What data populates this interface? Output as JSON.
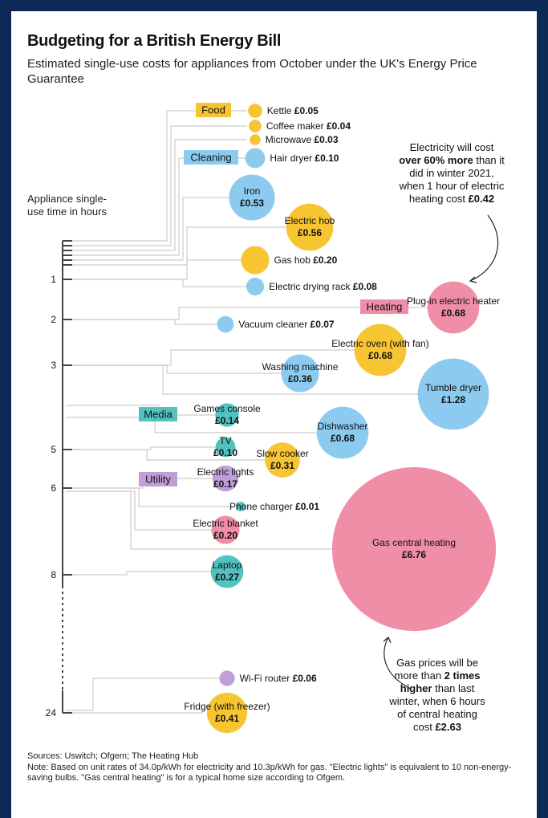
{
  "title": "Budgeting for a British Energy Bill",
  "subtitle": "Estimated single-use costs for appliances from October under the UK's Energy Price Guarantee",
  "colors": {
    "Food": "#f7c531",
    "Cleaning": "#8ccbef",
    "Heating": "#f08da7",
    "Media": "#52c2c0",
    "Utility": "#c09fd9",
    "axis": "#444444",
    "connector": "#cccccc"
  },
  "chart_data": {
    "type": "bubble",
    "ylabel": "Appliance single-use time in hours",
    "y_ticks": [
      "1",
      "2",
      "3",
      "5",
      "6",
      "8",
      "24"
    ],
    "categories": [
      "Food",
      "Cleaning",
      "Heating",
      "Media",
      "Utility"
    ],
    "series": [
      {
        "appliance": "Kettle",
        "cost": "£0.05",
        "value": 0.05,
        "category": "Food"
      },
      {
        "appliance": "Coffee maker",
        "cost": "£0.04",
        "value": 0.04,
        "category": "Food"
      },
      {
        "appliance": "Microwave",
        "cost": "£0.03",
        "value": 0.03,
        "category": "Food"
      },
      {
        "appliance": "Hair dryer",
        "cost": "£0.10",
        "value": 0.1,
        "category": "Cleaning"
      },
      {
        "appliance": "Iron",
        "cost": "£0.53",
        "value": 0.53,
        "category": "Cleaning"
      },
      {
        "appliance": "Electric hob",
        "cost": "£0.56",
        "value": 0.56,
        "category": "Food"
      },
      {
        "appliance": "Gas hob",
        "cost": "£0.20",
        "value": 0.2,
        "category": "Food"
      },
      {
        "appliance": "Electric drying rack",
        "cost": "£0.08",
        "value": 0.08,
        "category": "Cleaning"
      },
      {
        "appliance": "Plug-in electric heater",
        "cost": "£0.68",
        "value": 0.68,
        "category": "Heating"
      },
      {
        "appliance": "Vacuum cleaner",
        "cost": "£0.07",
        "value": 0.07,
        "category": "Cleaning"
      },
      {
        "appliance": "Electric oven (with fan)",
        "cost": "£0.68",
        "value": 0.68,
        "category": "Food"
      },
      {
        "appliance": "Washing machine",
        "cost": "£0.36",
        "value": 0.36,
        "category": "Cleaning"
      },
      {
        "appliance": "Tumble dryer",
        "cost": "£1.28",
        "value": 1.28,
        "category": "Cleaning"
      },
      {
        "appliance": "Games console",
        "cost": "£0.14",
        "value": 0.14,
        "category": "Media"
      },
      {
        "appliance": "Dishwasher",
        "cost": "£0.68",
        "value": 0.68,
        "category": "Cleaning"
      },
      {
        "appliance": "TV",
        "cost": "£0.10",
        "value": 0.1,
        "category": "Media"
      },
      {
        "appliance": "Slow cooker",
        "cost": "£0.31",
        "value": 0.31,
        "category": "Food"
      },
      {
        "appliance": "Electric lights",
        "cost": "£0.17",
        "value": 0.17,
        "category": "Utility"
      },
      {
        "appliance": "Phone charger",
        "cost": "£0.01",
        "value": 0.01,
        "category": "Media"
      },
      {
        "appliance": "Electric blanket",
        "cost": "£0.20",
        "value": 0.2,
        "category": "Heating"
      },
      {
        "appliance": "Gas central heating",
        "cost": "£6.76",
        "value": 6.76,
        "category": "Heating"
      },
      {
        "appliance": "Laptop",
        "cost": "£0.27",
        "value": 0.27,
        "category": "Media"
      },
      {
        "appliance": "Wi-Fi router",
        "cost": "£0.06",
        "value": 0.06,
        "category": "Utility"
      },
      {
        "appliance": "Fridge (with freezer)",
        "cost": "£0.41",
        "value": 0.41,
        "category": "Food"
      }
    ],
    "annotations": [
      {
        "lines": [
          [
            "Electricity will cost"
          ],
          [
            "over 60% more",
            " than it"
          ],
          [
            "did in winter 2021,"
          ],
          [
            "when 1 hour of electric"
          ],
          [
            "heating cost ",
            "£0.42"
          ]
        ]
      },
      {
        "lines": [
          [
            "Gas prices will be"
          ],
          [
            "more than ",
            "2 times"
          ],
          [
            "higher",
            " than last"
          ],
          [
            "winter, when 6 hours"
          ],
          [
            "of central heating"
          ],
          [
            "cost ",
            "£2.63"
          ]
        ]
      }
    ]
  },
  "footer": {
    "sources": "Sources: Uswitch; Ofgem; The Heating Hub",
    "note": "Note: Based on unit rates of 34.0p/kWh for electricity and 10.3p/kWh for gas. \"Electric lights\" is equivalent to 10 non-energy-saving bulbs. \"Gas central heating\" is for a typical home size according to Ofgem."
  }
}
